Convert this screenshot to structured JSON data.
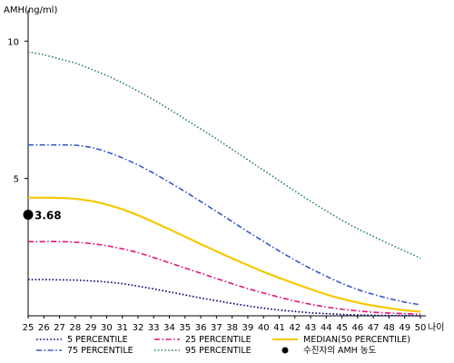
{
  "chart_data": {
    "type": "line",
    "title": "",
    "ylabel": "AMH(ng/ml)",
    "xlabel": "나이",
    "ylim": [
      0,
      11
    ],
    "y_ticks": [
      5,
      10
    ],
    "xlim": [
      25,
      50
    ],
    "x": [
      25,
      26,
      27,
      28,
      29,
      30,
      31,
      32,
      33,
      34,
      35,
      36,
      37,
      38,
      39,
      40,
      41,
      42,
      43,
      44,
      45,
      46,
      47,
      48,
      49,
      50
    ],
    "grid": false,
    "legend_position": "bottom",
    "series": [
      {
        "name": "5 PERCENTILE",
        "color": "#00006e",
        "dash": "dotted",
        "values": [
          1.32,
          1.32,
          1.31,
          1.3,
          1.27,
          1.23,
          1.17,
          1.08,
          0.98,
          0.87,
          0.76,
          0.65,
          0.55,
          0.45,
          0.36,
          0.28,
          0.21,
          0.16,
          0.11,
          0.08,
          0.05,
          0.03,
          0.02,
          0.01,
          0.01,
          0.0
        ]
      },
      {
        "name": "25 PERCENTILE",
        "color": "#e0177a",
        "dash": "dashdot",
        "values": [
          2.7,
          2.7,
          2.7,
          2.68,
          2.63,
          2.55,
          2.44,
          2.3,
          2.12,
          1.93,
          1.74,
          1.55,
          1.36,
          1.17,
          0.99,
          0.83,
          0.68,
          0.54,
          0.42,
          0.32,
          0.24,
          0.18,
          0.13,
          0.1,
          0.08,
          0.06
        ]
      },
      {
        "name": "MEDIAN(50 PERCENTILE)",
        "color": "#f5c800",
        "dash": "solid",
        "values": [
          4.3,
          4.3,
          4.29,
          4.26,
          4.18,
          4.05,
          3.88,
          3.66,
          3.41,
          3.15,
          2.88,
          2.61,
          2.35,
          2.09,
          1.84,
          1.6,
          1.38,
          1.17,
          0.97,
          0.78,
          0.62,
          0.48,
          0.37,
          0.28,
          0.2,
          0.15
        ]
      },
      {
        "name": "75 PERCENTILE",
        "color": "#3558c8",
        "dash": "dashdot",
        "values": [
          6.22,
          6.22,
          6.22,
          6.21,
          6.13,
          5.97,
          5.75,
          5.49,
          5.19,
          4.86,
          4.52,
          4.16,
          3.8,
          3.43,
          3.06,
          2.71,
          2.36,
          2.03,
          1.72,
          1.44,
          1.18,
          0.96,
          0.78,
          0.63,
          0.5,
          0.4
        ]
      },
      {
        "name": "95 PERCENTILE",
        "color": "#2e8b57",
        "dash": "dotted",
        "values": [
          9.6,
          9.5,
          9.35,
          9.2,
          8.98,
          8.75,
          8.48,
          8.18,
          7.86,
          7.52,
          7.16,
          6.8,
          6.44,
          6.06,
          5.68,
          5.3,
          4.92,
          4.54,
          4.17,
          3.82,
          3.48,
          3.17,
          2.89,
          2.62,
          2.36,
          2.1
        ]
      }
    ],
    "marker": {
      "name": "수진자의 AMH 농도",
      "x": 25,
      "value": 3.68,
      "label": "3.68",
      "color": "#000000"
    }
  }
}
